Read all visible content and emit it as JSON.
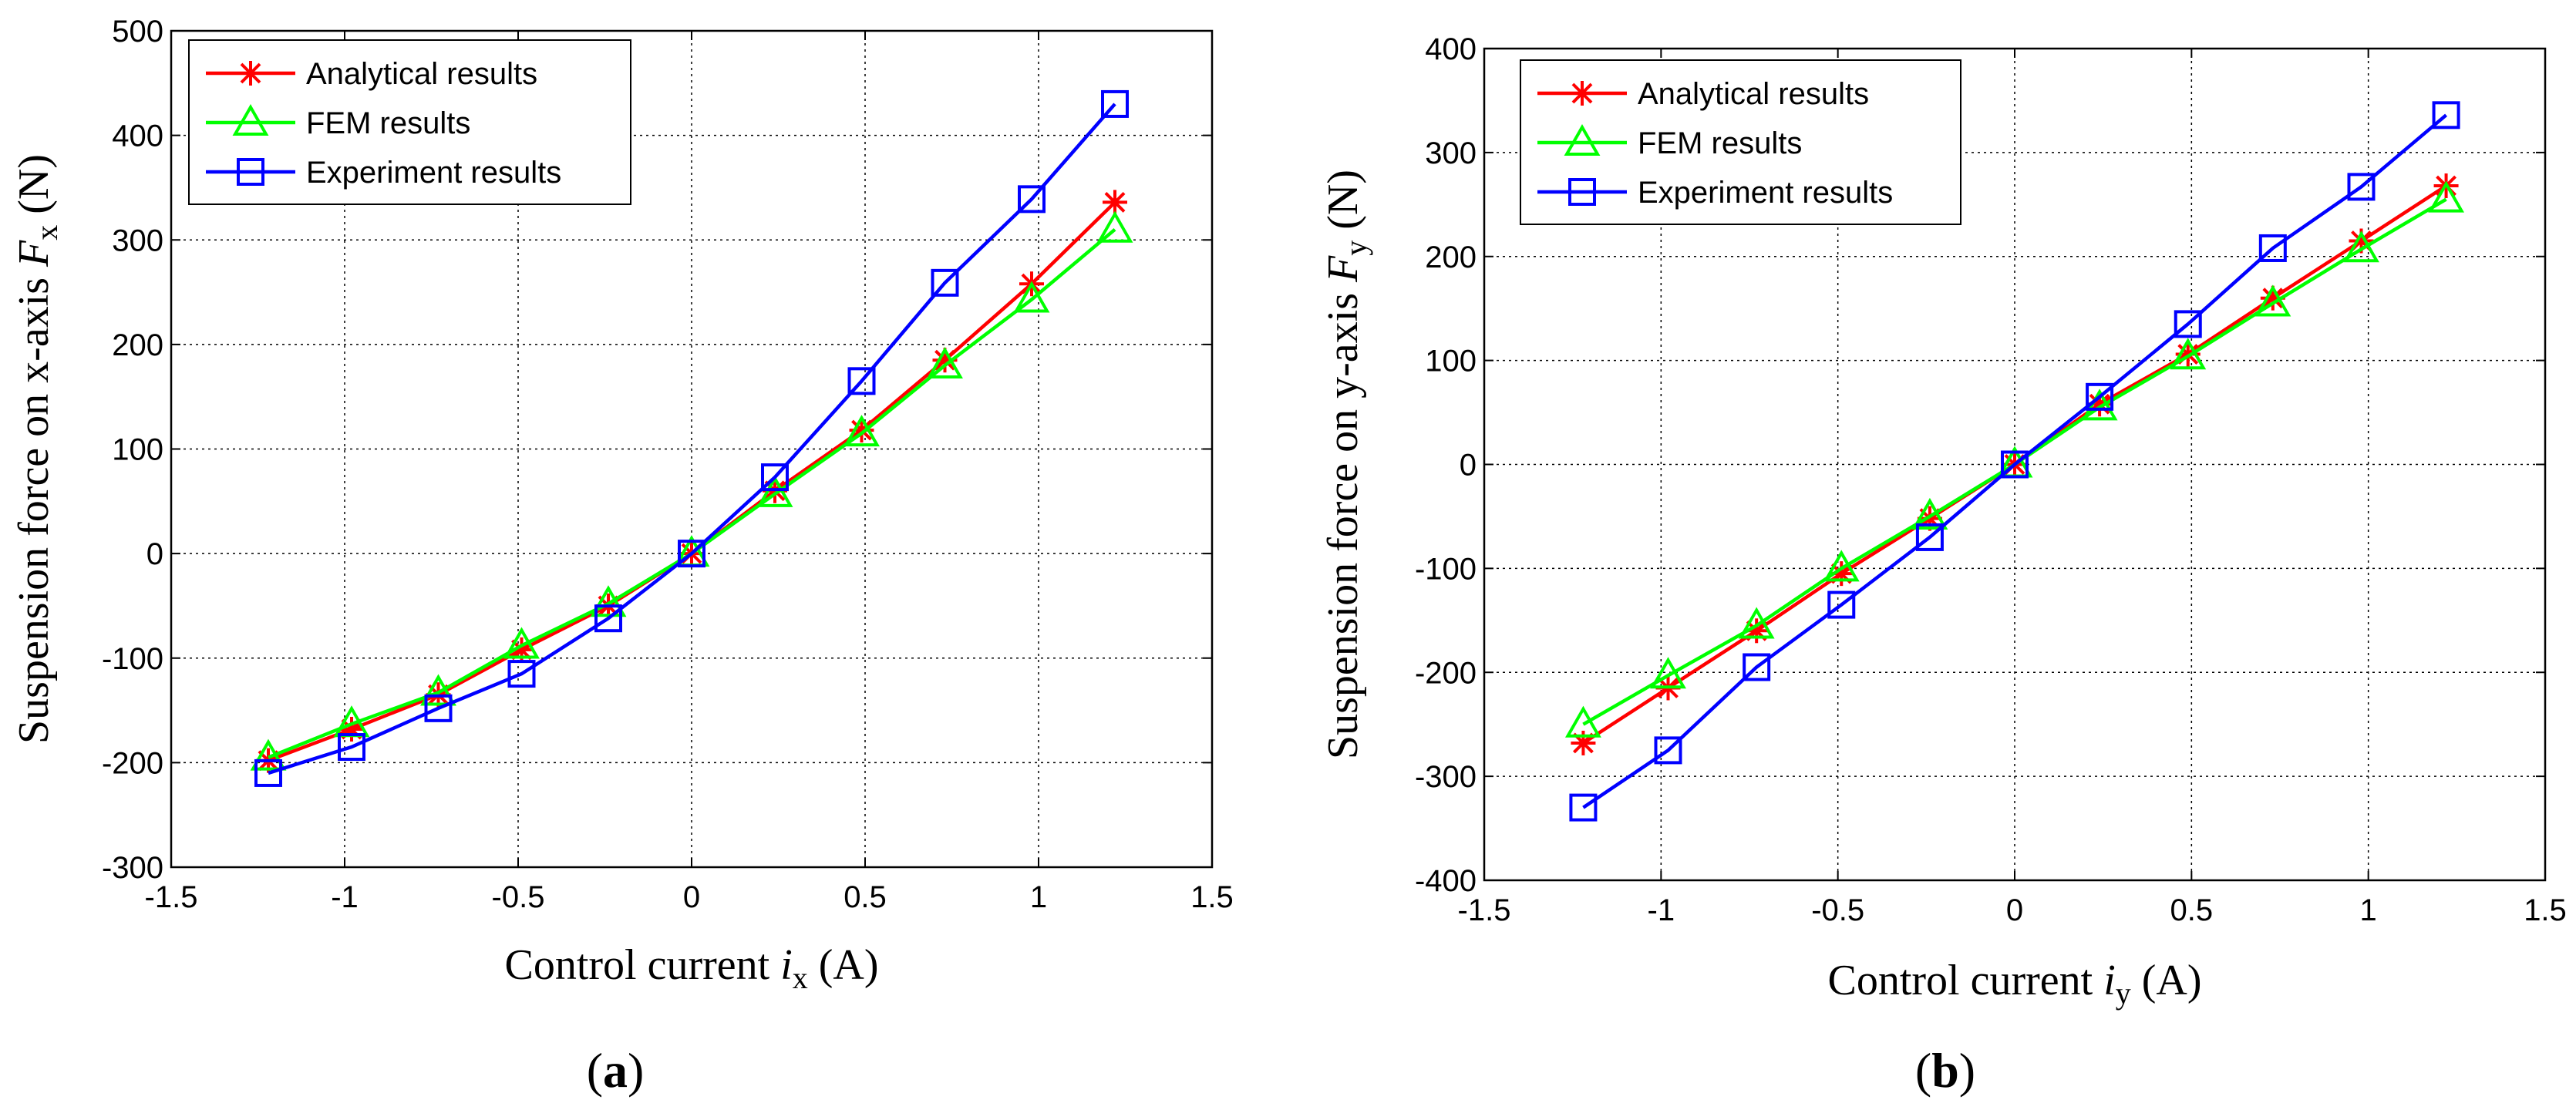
{
  "chart_data": [
    {
      "id": "a",
      "type": "line",
      "caption_open": "(",
      "caption_letter": "a",
      "caption_close": ")",
      "x_label_pre": "Control current ",
      "x_label_var": "i",
      "x_label_sub": "x",
      "x_label_post": " (A)",
      "y_label_pre": "Suspension force on x-axis ",
      "y_label_var": "F",
      "y_label_sub": "x",
      "y_label_post": " (N)",
      "xlim": [
        -1.5,
        1.5
      ],
      "ylim": [
        -300,
        500
      ],
      "x_ticks": [
        -1.5,
        -1,
        -0.5,
        0,
        0.5,
        1,
        1.5
      ],
      "x_tick_labels": [
        "-1.5",
        "-1",
        "-0.5",
        "0",
        "0.5",
        "1",
        "1.5"
      ],
      "y_ticks": [
        -300,
        -200,
        -100,
        0,
        100,
        200,
        300,
        400,
        500
      ],
      "y_tick_labels": [
        "-300",
        "-200",
        "-100",
        "0",
        "100",
        "200",
        "300",
        "400",
        "500"
      ],
      "grid": true,
      "legend_position": "top-left",
      "x": [
        -1.22,
        -0.98,
        -0.73,
        -0.49,
        -0.24,
        0,
        0.24,
        0.49,
        0.73,
        0.98,
        1.22
      ],
      "series": [
        {
          "name": "Analytical results",
          "color": "#ff0000",
          "marker": "star",
          "values": [
            -198,
            -168,
            -135,
            -92,
            -50,
            0,
            60,
            118,
            185,
            258,
            336
          ]
        },
        {
          "name": "FEM results",
          "color": "#00ff00",
          "marker": "triangle",
          "values": [
            -195,
            -163,
            -133,
            -88,
            -48,
            0,
            57,
            115,
            180,
            243,
            310
          ]
        },
        {
          "name": "Experiment results",
          "color": "#0000ff",
          "marker": "square",
          "values": [
            -210,
            -185,
            -148,
            -115,
            -62,
            0,
            73,
            165,
            259,
            339,
            430
          ]
        }
      ]
    },
    {
      "id": "b",
      "type": "line",
      "caption_open": "(",
      "caption_letter": "b",
      "caption_close": ")",
      "x_label_pre": "Control current ",
      "x_label_var": "i",
      "x_label_sub": "y",
      "x_label_post": " (A)",
      "y_label_pre": "Suspension force on y-axis ",
      "y_label_var": "F",
      "y_label_sub": "y",
      "y_label_post": " (N)",
      "xlim": [
        -1.5,
        1.5
      ],
      "ylim": [
        -400,
        400
      ],
      "x_ticks": [
        -1.5,
        -1,
        -0.5,
        0,
        0.5,
        1,
        1.5
      ],
      "x_tick_labels": [
        "-1.5",
        "-1",
        "-0.5",
        "0",
        "0.5",
        "1",
        "1.5"
      ],
      "y_ticks": [
        -400,
        -300,
        -200,
        -100,
        0,
        100,
        200,
        300,
        400
      ],
      "y_tick_labels": [
        "-400",
        "-300",
        "-200",
        "-100",
        "0",
        "100",
        "200",
        "300",
        "400"
      ],
      "grid": true,
      "legend_position": "top-left",
      "x": [
        -1.22,
        -0.98,
        -0.73,
        -0.49,
        -0.24,
        0,
        0.24,
        0.49,
        0.73,
        0.98,
        1.22
      ],
      "series": [
        {
          "name": "Analytical results",
          "color": "#ff0000",
          "marker": "star",
          "values": [
            -268,
            -215,
            -160,
            -105,
            -52,
            0,
            58,
            106,
            160,
            215,
            268
          ]
        },
        {
          "name": "FEM results",
          "color": "#00ff00",
          "marker": "triangle",
          "values": [
            -250,
            -203,
            -155,
            -100,
            -50,
            0,
            55,
            104,
            155,
            207,
            255
          ]
        },
        {
          "name": "Experiment results",
          "color": "#0000ff",
          "marker": "square",
          "values": [
            -330,
            -275,
            -195,
            -135,
            -70,
            0,
            65,
            135,
            208,
            267,
            336
          ]
        }
      ]
    }
  ]
}
